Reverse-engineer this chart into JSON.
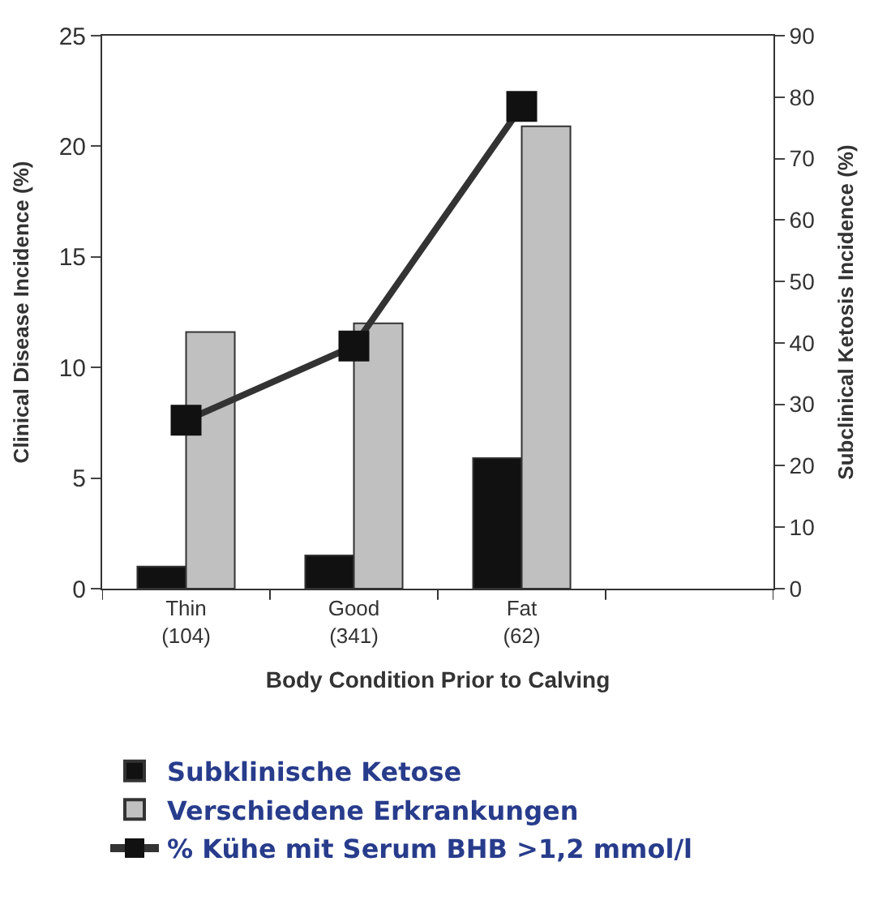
{
  "chart_data": {
    "type": "bar",
    "categories": [
      "Thin\n(104)",
      "Good\n(341)",
      "Fat\n(62)",
      null
    ],
    "xlabel": "Body Condition Prior to Calving",
    "ylabel": "Clinical Disease Incidence (%)",
    "y2label": "Subclinical Ketosis Incidence (%)",
    "series": [
      {
        "name": "Subklinische Ketose",
        "color": "#111111",
        "values": [
          1.0,
          1.5,
          5.9,
          null
        ]
      },
      {
        "name": "Verschiedene Erkrankungen",
        "color": "#c0c0c0",
        "values": [
          11.6,
          12.0,
          20.9,
          null
        ]
      },
      {
        "name": "% Kühe mit Serum BHB >1,2 mmol/l",
        "type": "line",
        "axis": "y2",
        "color": "#333333",
        "marker": "square",
        "values": [
          27.4,
          39.5,
          78.5,
          null
        ]
      }
    ],
    "ylim": [
      0,
      25
    ],
    "yticks": [
      0,
      5,
      10,
      15,
      20,
      25
    ],
    "y2lim": [
      0,
      90
    ],
    "y2ticks": [
      0,
      10,
      20,
      30,
      40,
      50,
      60,
      70,
      80,
      90
    ],
    "legend": "bottom"
  }
}
